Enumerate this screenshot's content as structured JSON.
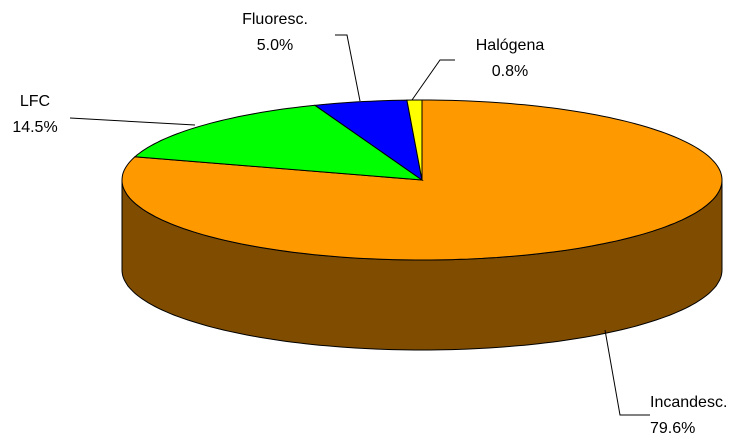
{
  "chart_data": {
    "type": "pie3d",
    "categories": [
      "Incandesc.",
      "LFC",
      "Fluoresc.",
      "Halógena"
    ],
    "values": [
      79.6,
      14.5,
      5.0,
      0.8
    ],
    "value_labels": [
      "79.6%",
      "14.5%",
      "5.0%",
      "0.8%"
    ],
    "colors": [
      "#ff9900",
      "#00ff00",
      "#0000ff",
      "#ffff00"
    ]
  }
}
